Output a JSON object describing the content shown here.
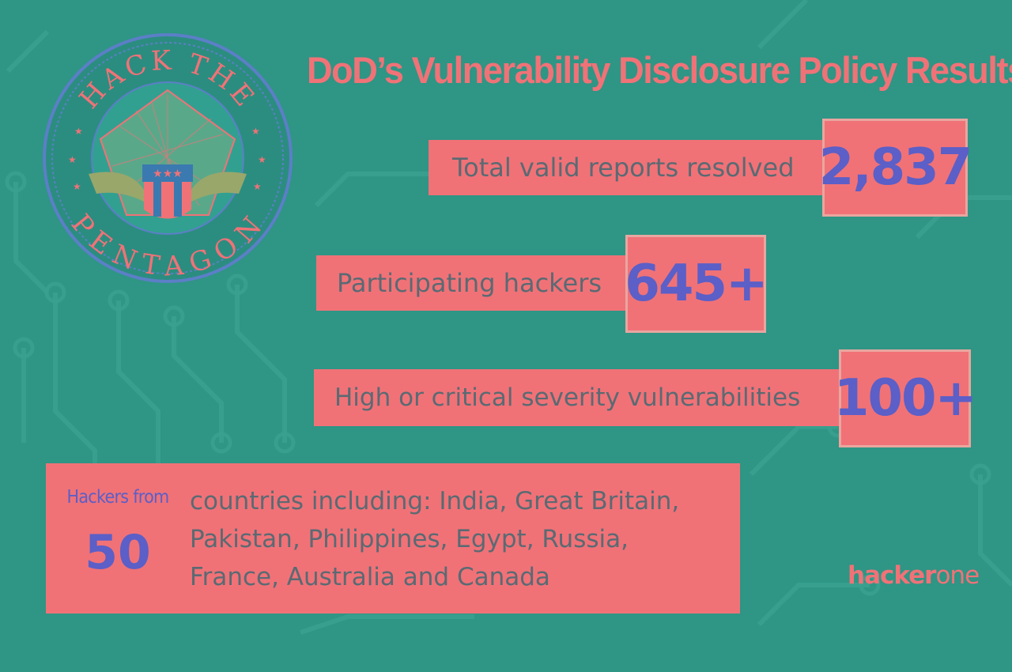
{
  "colors": {
    "background": "#2f9585",
    "accent_coral": "#f07277",
    "number_purple": "#5b5fc7",
    "label_gray": "#5a6a73"
  },
  "seal": {
    "icon": "hack-the-pentagon-seal",
    "text_top": "HACK THE",
    "text_bottom": "PENTAGON"
  },
  "title": "DoD’s Vulnerability Disclosure Policy Results",
  "stats": [
    {
      "label": "Total valid reports resolved",
      "value": "2,837"
    },
    {
      "label": "Participating hackers",
      "value": "645+"
    },
    {
      "label": "High or critical severity vulnerabilities",
      "value": "100+"
    }
  ],
  "countries": {
    "prefix": "Hackers from",
    "count": "50",
    "lines": [
      "countries including: India, Great Britain,",
      "Pakistan, Philippines, Egypt, Russia,",
      "France, Australia and Canada"
    ]
  },
  "brand": {
    "part1": "hacker",
    "part2": "one"
  }
}
